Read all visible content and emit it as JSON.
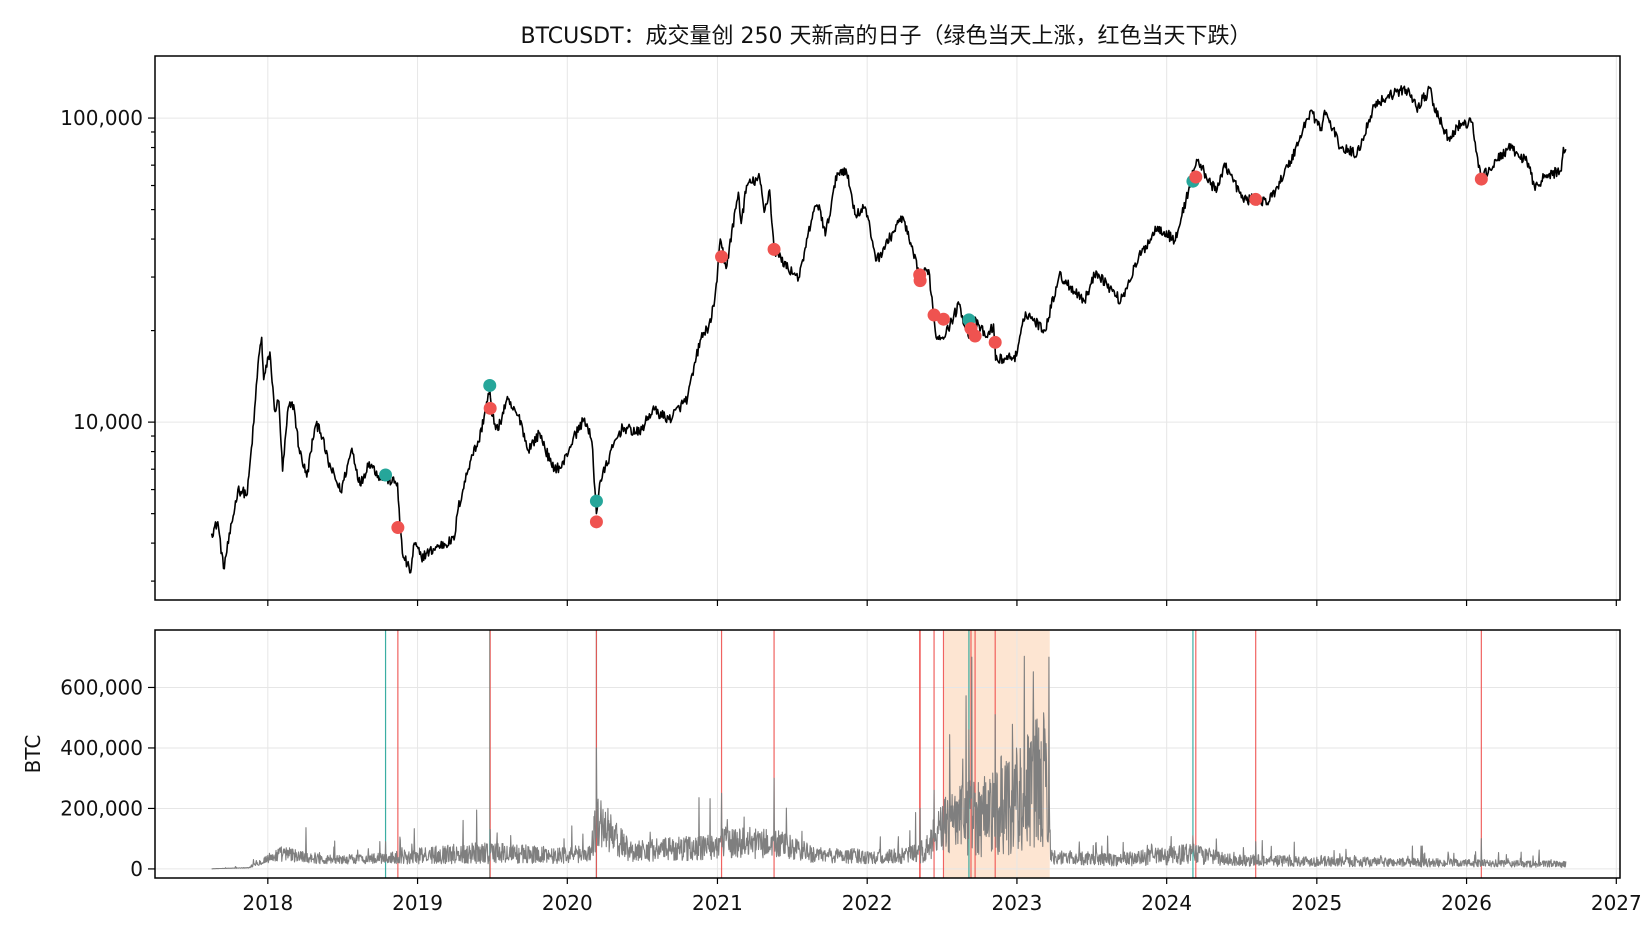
{
  "chart_data": {
    "title": "BTCUSDT：成交量创 250 天新高的日子（绿色当天上涨，红色当天下跌）",
    "colors": {
      "up": "#26a69a",
      "down": "#ef5350",
      "price_line": "#000000",
      "volume_line": "#7f7f7f",
      "highlight": "#fde5d2"
    },
    "x_ticks": [
      "2018",
      "2019",
      "2020",
      "2021",
      "2022",
      "2023",
      "2024",
      "2025",
      "2026",
      "2027"
    ],
    "x_range": [
      "2017-04-01",
      "2027-01-10"
    ],
    "top": {
      "type": "line",
      "yscale": "log",
      "ylim": [
        2600,
        160000
      ],
      "y_ticks": [
        {
          "value": 10000,
          "label": "10,000"
        },
        {
          "value": 100000,
          "label": "100,000"
        }
      ],
      "price": [
        [
          "2017-08-17",
          4300
        ],
        [
          "2017-09-01",
          4700
        ],
        [
          "2017-09-15",
          3300
        ],
        [
          "2017-10-01",
          4300
        ],
        [
          "2017-10-20",
          6000
        ],
        [
          "2017-11-12",
          5800
        ],
        [
          "2017-11-28",
          10000
        ],
        [
          "2017-12-08",
          15500
        ],
        [
          "2017-12-17",
          19000
        ],
        [
          "2017-12-22",
          13800
        ],
        [
          "2018-01-06",
          17000
        ],
        [
          "2018-01-17",
          11000
        ],
        [
          "2018-01-28",
          11700
        ],
        [
          "2018-02-06",
          6900
        ],
        [
          "2018-02-20",
          11200
        ],
        [
          "2018-03-05",
          11400
        ],
        [
          "2018-03-18",
          8200
        ],
        [
          "2018-04-06",
          6600
        ],
        [
          "2018-04-25",
          9500
        ],
        [
          "2018-05-06",
          9800
        ],
        [
          "2018-05-28",
          7400
        ],
        [
          "2018-06-28",
          5900
        ],
        [
          "2018-07-25",
          8200
        ],
        [
          "2018-08-14",
          6200
        ],
        [
          "2018-09-05",
          7400
        ],
        [
          "2018-10-01",
          6600
        ],
        [
          "2018-10-17",
          6500
        ],
        [
          "2018-11-13",
          6300
        ],
        [
          "2018-11-19",
          4600
        ],
        [
          "2018-11-25",
          3700
        ],
        [
          "2018-12-15",
          3200
        ],
        [
          "2018-12-24",
          4000
        ],
        [
          "2019-01-10",
          3600
        ],
        [
          "2019-02-20",
          3900
        ],
        [
          "2019-03-31",
          4100
        ],
        [
          "2019-04-10",
          5200
        ],
        [
          "2019-05-13",
          7800
        ],
        [
          "2019-05-30",
          8600
        ],
        [
          "2019-06-26",
          12800
        ],
        [
          "2019-07-01",
          10500
        ],
        [
          "2019-07-16",
          9400
        ],
        [
          "2019-08-06",
          11800
        ],
        [
          "2019-09-10",
          10100
        ],
        [
          "2019-09-26",
          8100
        ],
        [
          "2019-10-26",
          9200
        ],
        [
          "2019-11-25",
          7100
        ],
        [
          "2019-12-18",
          7100
        ],
        [
          "2020-01-15",
          8800
        ],
        [
          "2020-02-12",
          10300
        ],
        [
          "2020-03-01",
          8600
        ],
        [
          "2020-03-12",
          5000
        ],
        [
          "2020-03-20",
          6300
        ],
        [
          "2020-04-29",
          8800
        ],
        [
          "2020-05-15",
          9600
        ],
        [
          "2020-06-25",
          9200
        ],
        [
          "2020-07-27",
          11000
        ],
        [
          "2020-09-05",
          10200
        ],
        [
          "2020-10-20",
          12000
        ],
        [
          "2020-11-20",
          18600
        ],
        [
          "2020-12-16",
          21300
        ],
        [
          "2020-12-31",
          29000
        ],
        [
          "2021-01-08",
          40000
        ],
        [
          "2021-01-22",
          32000
        ],
        [
          "2021-02-21",
          57000
        ],
        [
          "2021-02-28",
          45000
        ],
        [
          "2021-03-13",
          60000
        ],
        [
          "2021-04-14",
          63500
        ],
        [
          "2021-04-25",
          49000
        ],
        [
          "2021-05-08",
          58000
        ],
        [
          "2021-05-19",
          37000
        ],
        [
          "2021-06-22",
          32000
        ],
        [
          "2021-07-20",
          30000
        ],
        [
          "2021-08-22",
          49000
        ],
        [
          "2021-09-06",
          51800
        ],
        [
          "2021-09-21",
          41000
        ],
        [
          "2021-10-20",
          66000
        ],
        [
          "2021-11-10",
          68000
        ],
        [
          "2021-12-04",
          48000
        ],
        [
          "2021-12-27",
          51000
        ],
        [
          "2022-01-24",
          34000
        ],
        [
          "2022-03-28",
          47500
        ],
        [
          "2022-05-09",
          30000
        ],
        [
          "2022-05-31",
          31700
        ],
        [
          "2022-06-18",
          19000
        ],
        [
          "2022-07-12",
          19600
        ],
        [
          "2022-08-13",
          24400
        ],
        [
          "2022-09-06",
          18900
        ],
        [
          "2022-09-13",
          22000
        ],
        [
          "2022-10-21",
          19000
        ],
        [
          "2022-11-05",
          21000
        ],
        [
          "2022-11-10",
          16000
        ],
        [
          "2022-12-31",
          16500
        ],
        [
          "2023-01-22",
          23000
        ],
        [
          "2023-03-10",
          20000
        ],
        [
          "2023-04-14",
          30400
        ],
        [
          "2023-06-15",
          25100
        ],
        [
          "2023-07-13",
          31400
        ],
        [
          "2023-09-11",
          25000
        ],
        [
          "2023-10-24",
          34500
        ],
        [
          "2023-12-10",
          44000
        ],
        [
          "2024-01-22",
          39500
        ],
        [
          "2024-03-14",
          73000
        ],
        [
          "2024-05-01",
          57000
        ],
        [
          "2024-05-21",
          71000
        ],
        [
          "2024-07-05",
          54000
        ],
        [
          "2024-08-05",
          54000
        ],
        [
          "2024-09-06",
          53000
        ],
        [
          "2024-10-29",
          72000
        ],
        [
          "2024-12-17",
          106000
        ],
        [
          "2025-01-13",
          91000
        ],
        [
          "2025-01-20",
          106000
        ],
        [
          "2025-02-28",
          80000
        ],
        [
          "2025-04-09",
          76000
        ],
        [
          "2025-05-22",
          111000
        ],
        [
          "2025-07-14",
          122000
        ],
        [
          "2025-08-14",
          123500
        ],
        [
          "2025-09-01",
          108000
        ],
        [
          "2025-10-06",
          125000
        ],
        [
          "2025-10-11",
          110000
        ],
        [
          "2025-11-21",
          84000
        ],
        [
          "2025-12-10",
          94000
        ],
        [
          "2026-01-14",
          97000
        ],
        [
          "2026-02-05",
          63000
        ],
        [
          "2026-04-13",
          80000
        ],
        [
          "2026-05-28",
          72000
        ],
        [
          "2026-06-15",
          60000
        ],
        [
          "2026-07-20",
          65000
        ],
        [
          "2026-08-20",
          67000
        ],
        [
          "2026-08-25",
          80000
        ],
        [
          "2026-08-31",
          79000
        ]
      ],
      "markers": [
        {
          "date": "2018-10-15",
          "price": 6700,
          "dir": "up"
        },
        {
          "date": "2018-11-14",
          "price": 4500,
          "dir": "down"
        },
        {
          "date": "2019-06-26",
          "price": 13200,
          "dir": "up"
        },
        {
          "date": "2019-06-27",
          "price": 11100,
          "dir": "down"
        },
        {
          "date": "2020-03-12",
          "price": 5500,
          "dir": "up"
        },
        {
          "date": "2020-03-12",
          "price": 4700,
          "dir": "down"
        },
        {
          "date": "2021-01-11",
          "price": 35000,
          "dir": "down"
        },
        {
          "date": "2021-05-19",
          "price": 37000,
          "dir": "down"
        },
        {
          "date": "2022-05-09",
          "price": 30500,
          "dir": "down"
        },
        {
          "date": "2022-05-10",
          "price": 29200,
          "dir": "down"
        },
        {
          "date": "2022-06-13",
          "price": 22500,
          "dir": "down"
        },
        {
          "date": "2022-07-06",
          "price": 21800,
          "dir": "down"
        },
        {
          "date": "2022-09-06",
          "price": 21700,
          "dir": "up"
        },
        {
          "date": "2022-09-11",
          "price": 20300,
          "dir": "down"
        },
        {
          "date": "2022-09-21",
          "price": 19200,
          "dir": "down"
        },
        {
          "date": "2022-11-09",
          "price": 18300,
          "dir": "down"
        },
        {
          "date": "2024-03-05",
          "price": 62000,
          "dir": "up"
        },
        {
          "date": "2024-03-12",
          "price": 64000,
          "dir": "down"
        },
        {
          "date": "2024-08-05",
          "price": 54000,
          "dir": "down"
        },
        {
          "date": "2026-02-06",
          "price": 63000,
          "dir": "down"
        }
      ]
    },
    "bottom": {
      "type": "line",
      "ylabel": "BTC",
      "ylim": [
        -30000,
        790000
      ],
      "y_ticks": [
        {
          "value": 0,
          "label": "0"
        },
        {
          "value": 200000,
          "label": "200,000"
        },
        {
          "value": 400000,
          "label": "400,000"
        },
        {
          "value": 600000,
          "label": "600,000"
        }
      ],
      "highlight_range": [
        "2022-07-08",
        "2023-03-22"
      ],
      "volume_profile": [
        [
          "2017-08-17",
          500,
          0.1
        ],
        [
          "2017-11-15",
          4000,
          0.3
        ],
        [
          "2017-12-25",
          30000,
          0.5
        ],
        [
          "2018-02-01",
          50000,
          0.5
        ],
        [
          "2018-06-01",
          30000,
          0.5
        ],
        [
          "2018-10-01",
          35000,
          0.5
        ],
        [
          "2018-12-01",
          40000,
          0.6
        ],
        [
          "2019-06-01",
          55000,
          0.7
        ],
        [
          "2019-12-01",
          45000,
          0.6
        ],
        [
          "2020-02-25",
          50000,
          0.6
        ],
        [
          "2020-03-13",
          160000,
          0.6
        ],
        [
          "2020-06-01",
          60000,
          0.6
        ],
        [
          "2020-12-01",
          70000,
          0.6
        ],
        [
          "2021-02-01",
          90000,
          0.6
        ],
        [
          "2021-06-01",
          80000,
          0.6
        ],
        [
          "2021-09-01",
          45000,
          0.6
        ],
        [
          "2022-03-01",
          40000,
          0.6
        ],
        [
          "2022-05-05",
          50000,
          0.7
        ],
        [
          "2022-06-20",
          90000,
          0.7
        ],
        [
          "2022-07-08",
          150000,
          0.7
        ],
        [
          "2022-11-01",
          190000,
          0.8
        ],
        [
          "2023-03-20",
          300000,
          0.8
        ],
        [
          "2023-03-24",
          40000,
          0.6
        ],
        [
          "2023-09-01",
          30000,
          0.7
        ],
        [
          "2024-03-01",
          50000,
          0.7
        ],
        [
          "2024-06-01",
          30000,
          0.7
        ],
        [
          "2025-01-01",
          25000,
          0.7
        ],
        [
          "2026-08-31",
          15000,
          0.7
        ]
      ],
      "volume_spikes": [
        [
          "2018-10-15",
          90000
        ],
        [
          "2018-11-20",
          95000
        ],
        [
          "2019-06-27",
          130000
        ],
        [
          "2020-03-12",
          400000
        ],
        [
          "2020-03-14",
          220000
        ],
        [
          "2021-01-11",
          250000
        ],
        [
          "2021-05-19",
          300000
        ],
        [
          "2022-05-10",
          200000
        ],
        [
          "2022-06-13",
          260000
        ],
        [
          "2022-09-06",
          460000
        ],
        [
          "2022-09-13",
          700000
        ],
        [
          "2022-11-09",
          510000
        ],
        [
          "2023-03-20",
          700000
        ],
        [
          "2024-03-05",
          110000
        ],
        [
          "2024-08-05",
          90000
        ],
        [
          "2026-02-06",
          100000
        ]
      ]
    }
  }
}
